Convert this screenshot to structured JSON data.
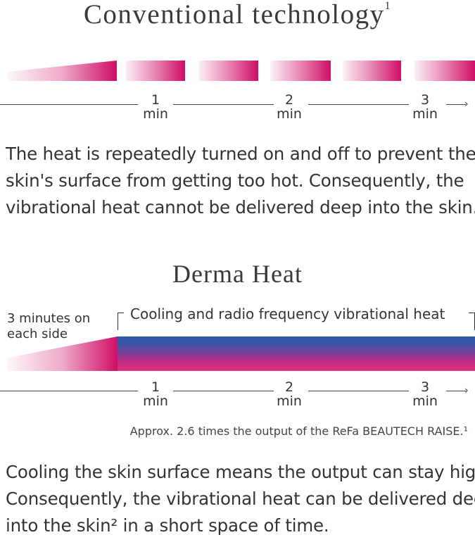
{
  "conventional": {
    "title": "Conventional technology",
    "title_note": "1",
    "description_lines": [
      "The heat is repeatedly turned on and off  to prevent the",
      "skin's surface from getting too hot. Consequently, the",
      "vibrational heat cannot be delivered deep into the skin."
    ]
  },
  "timeline": {
    "ticks": [
      {
        "num": "1",
        "unit": "min"
      },
      {
        "num": "2",
        "unit": "min"
      },
      {
        "num": "3",
        "unit": "min"
      }
    ],
    "arrow": "→"
  },
  "derma": {
    "title": "Derma Heat",
    "side_label_lines": [
      "3 minutes on",
      "each side"
    ],
    "bar_label": "Cooling and radio frequency vibrational heat",
    "note": "Approx. 2.6 times the output of the ReFa BEAUTECH RAISE.¹",
    "description_lines": [
      "Cooling the skin surface means the output can stay high.",
      "Consequently, the vibrational heat can be delivered deep",
      "into the skin² in a short space of time."
    ]
  },
  "colors": {
    "magenta": "#cf0e67",
    "blue": "#2f5aa6"
  }
}
